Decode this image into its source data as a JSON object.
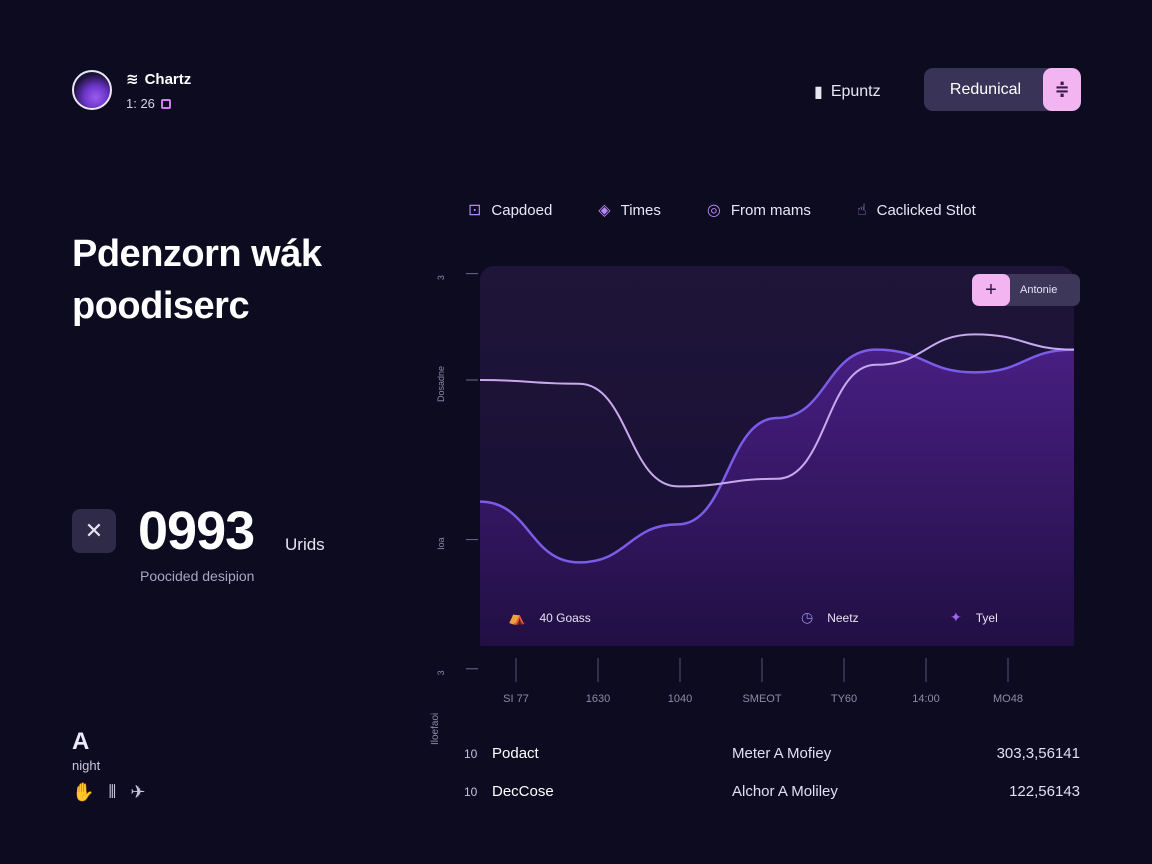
{
  "header": {
    "brand_name": "Chartz",
    "brand_sub": "1: 26",
    "export_label": "Epuntz",
    "toggle_label": "Redunical",
    "toggle_icon": "≑"
  },
  "hero": {
    "title_line1": "Pdenzorn wák",
    "title_line2": "poodiserc",
    "metric_value": "0993",
    "metric_unit": "Urids",
    "metric_desc": "Poocided desipion"
  },
  "sidebar_bottom": {
    "logo": "A",
    "label": "night"
  },
  "tabs": [
    {
      "label": "Capdoed",
      "icon": "lock-icon"
    },
    {
      "label": "Times",
      "icon": "diamond-icon"
    },
    {
      "label": "From mams",
      "icon": "target-icon"
    },
    {
      "label": "Caclicked Stlot",
      "icon": "hand-icon"
    }
  ],
  "chart_card": {
    "add_label": "Antonie",
    "legend": [
      {
        "label": "40 Goass",
        "icon": "tent-icon"
      },
      {
        "label": "Neetz",
        "icon": "clock-icon"
      },
      {
        "label": "Tyel",
        "icon": "pin-icon"
      }
    ],
    "y_ticks": [
      "3",
      "Dosadne",
      "Ioa",
      "3"
    ],
    "x_ticks": [
      "SI 77",
      "1630",
      "1040",
      "SMEOT",
      "TY60",
      "14:00",
      "MO48"
    ]
  },
  "chart_data": {
    "type": "area",
    "categories": [
      "SI 77",
      "1630",
      "1040",
      "SMEOT",
      "TY60",
      "14:00",
      "MO48"
    ],
    "series": [
      {
        "values": [
          0.7,
          0.69,
          0.42,
          0.44,
          0.74,
          0.82,
          0.78
        ]
      },
      {
        "values": [
          0.38,
          0.22,
          0.32,
          0.6,
          0.78,
          0.72,
          0.78
        ]
      }
    ],
    "ylim": [
      0,
      1
    ],
    "grid": false
  },
  "table": {
    "side_label": "Iloefaoi",
    "rows": [
      {
        "num": "10",
        "name": "Podact",
        "client": "Meter A Mofiey",
        "value": "303,3,56141"
      },
      {
        "num": "10",
        "name": "DecCose",
        "client": "Alchor A Moliley",
        "value": "122,56143"
      }
    ]
  }
}
